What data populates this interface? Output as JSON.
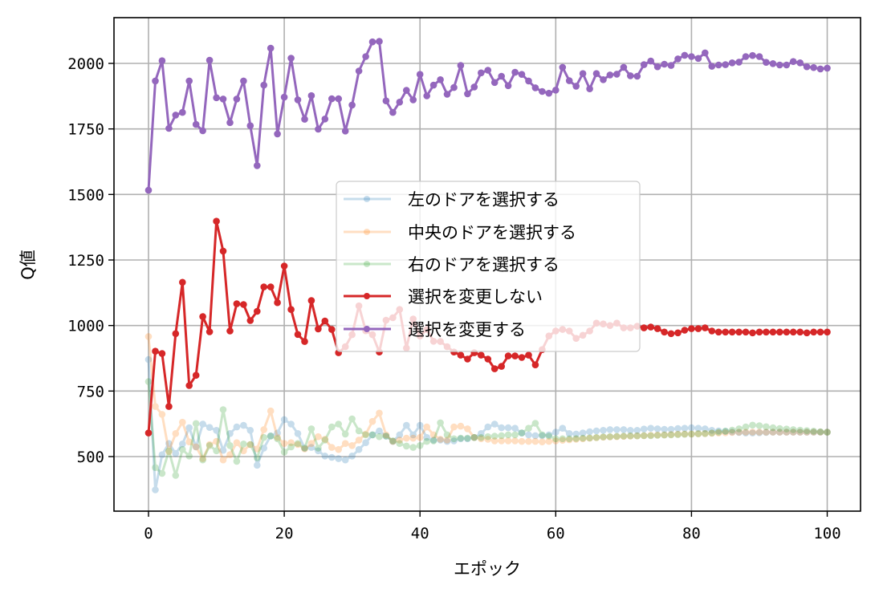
{
  "chart_data": {
    "type": "line",
    "title": "",
    "xlabel": "エポック",
    "ylabel": "Q値",
    "xlim": [
      -5,
      105
    ],
    "ylim": [
      300,
      2180
    ],
    "x_ticks": [
      0,
      20,
      40,
      60,
      80,
      100
    ],
    "y_ticks": [
      500,
      750,
      1000,
      1250,
      1500,
      1750,
      2000
    ],
    "grid": true,
    "legend_position": "center",
    "x": "0..100 (epoch index)",
    "series": [
      {
        "name": "左のドアを選択する",
        "color": "#1f77b4",
        "alpha": 0.25,
        "marker": "o",
        "values": [
          870,
          373,
          507,
          550,
          512,
          548,
          610,
          537,
          624,
          611,
          600,
          524,
          588,
          613,
          619,
          600,
          467,
          532,
          579,
          590,
          641,
          624,
          588,
          532,
          535,
          522,
          502,
          497,
          492,
          487,
          502,
          527,
          553,
          583,
          598,
          578,
          558,
          583,
          619,
          583,
          619,
          573,
          563,
          563,
          558,
          560,
          568,
          568,
          573,
          588,
          613,
          624,
          610,
          610,
          608,
          590,
          583,
          580,
          580,
          583,
          593,
          608,
          588,
          586,
          590,
          595,
          598,
          600,
          603,
          603,
          603,
          600,
          600,
          605,
          608,
          606,
          604,
          604,
          607,
          608,
          610,
          608,
          606,
          600,
          598,
          596,
          594,
          592,
          590,
          590,
          591,
          592,
          593,
          593,
          593,
          593,
          593,
          593,
          593,
          593,
          593
        ]
      },
      {
        "name": "中央のドアを選択する",
        "color": "#ff7f0e",
        "alpha": 0.25,
        "marker": "o",
        "values": [
          958,
          691,
          661,
          519,
          588,
          631,
          556,
          537,
          492,
          546,
          558,
          487,
          507,
          553,
          522,
          546,
          529,
          603,
          674,
          573,
          550,
          553,
          546,
          529,
          550,
          576,
          566,
          535,
          527,
          550,
          542,
          563,
          586,
          634,
          666,
          583,
          558,
          563,
          570,
          570,
          573,
          613,
          583,
          566,
          563,
          613,
          616,
          606,
          573,
          568,
          566,
          560,
          560,
          560,
          560,
          558,
          558,
          558,
          556,
          558,
          560,
          562,
          564,
          566,
          568,
          570,
          572,
          574,
          575,
          576,
          577,
          578,
          579,
          580,
          581,
          582,
          583,
          584,
          585,
          586,
          586,
          587,
          588,
          589,
          590,
          591,
          592,
          593,
          593,
          593,
          593,
          593,
          593,
          593,
          593,
          593,
          593,
          593,
          593,
          593,
          593
        ]
      },
      {
        "name": "右のドアを選択する",
        "color": "#2ca02c",
        "alpha": 0.25,
        "marker": "o",
        "values": [
          786,
          458,
          436,
          522,
          428,
          527,
          502,
          626,
          487,
          542,
          522,
          679,
          542,
          482,
          548,
          546,
          495,
          573,
          578,
          568,
          517,
          537,
          550,
          532,
          606,
          532,
          563,
          613,
          624,
          586,
          644,
          598,
          583,
          583,
          576,
          578,
          560,
          550,
          540,
          535,
          542,
          558,
          560,
          629,
          583,
          568,
          570,
          570,
          573,
          573,
          576,
          578,
          580,
          583,
          583,
          590,
          608,
          627,
          583,
          578,
          568,
          568,
          568,
          569,
          570,
          571,
          573,
          575,
          576,
          577,
          578,
          579,
          579,
          580,
          580,
          581,
          582,
          583,
          584,
          585,
          586,
          587,
          588,
          590,
          593,
          597,
          601,
          606,
          613,
          620,
          618,
          614,
          610,
          607,
          605,
          603,
          601,
          599,
          597,
          595,
          593
        ]
      },
      {
        "name": "選択を変更しない",
        "color": "#d62728",
        "alpha": 1.0,
        "marker": "o",
        "values": [
          590,
          902,
          893,
          691,
          969,
          1165,
          771,
          810,
          1034,
          976,
          1398,
          1284,
          979,
          1083,
          1080,
          1019,
          1054,
          1147,
          1147,
          1087,
          1227,
          1061,
          966,
          939,
          1095,
          987,
          1017,
          985,
          896,
          919,
          965,
          1075,
          980,
          965,
          899,
          1020,
          1030,
          1061,
          914,
          1025,
          960,
          985,
          940,
          939,
          919,
          899,
          887,
          872,
          896,
          887,
          872,
          835,
          844,
          884,
          884,
          878,
          887,
          850,
          908,
          960,
          979,
          985,
          979,
          951,
          963,
          979,
          1009,
          1006,
          1000,
          1009,
          991,
          991,
          997,
          991,
          994,
          988,
          975,
          969,
          972,
          982,
          988,
          988,
          991,
          979,
          975,
          975,
          975,
          975,
          975,
          972,
          975,
          975,
          975,
          975,
          975,
          975,
          975,
          972,
          975,
          975,
          975
        ]
      },
      {
        "name": "選択を変更する",
        "color": "#9467bd",
        "alpha": 1.0,
        "marker": "o",
        "values": [
          1516,
          1933,
          2010,
          1752,
          1803,
          1813,
          1933,
          1767,
          1743,
          2012,
          1869,
          1864,
          1774,
          1864,
          1933,
          1762,
          1610,
          1917,
          2058,
          1731,
          1871,
          2020,
          1861,
          1787,
          1877,
          1749,
          1788,
          1865,
          1865,
          1742,
          1841,
          1971,
          2026,
          2082,
          2084,
          1857,
          1813,
          1852,
          1897,
          1861,
          1958,
          1876,
          1917,
          1938,
          1882,
          1908,
          1992,
          1884,
          1910,
          1964,
          1974,
          1927,
          1951,
          1915,
          1966,
          1958,
          1933,
          1907,
          1893,
          1886,
          1898,
          1985,
          1934,
          1913,
          1961,
          1903,
          1961,
          1938,
          1956,
          1959,
          1985,
          1953,
          1951,
          1995,
          2009,
          1987,
          1997,
          1992,
          2017,
          2031,
          2026,
          2019,
          2040,
          1989,
          1994,
          1995,
          2002,
          2005,
          2026,
          2030,
          2026,
          2004,
          1999,
          1994,
          1994,
          2007,
          2002,
          1987,
          1984,
          1979,
          1982
        ]
      }
    ]
  },
  "axes": {
    "xlabel": "エポック",
    "ylabel": "Q値",
    "x_tick_labels": [
      "0",
      "20",
      "40",
      "60",
      "80",
      "100"
    ],
    "y_tick_labels": [
      "500",
      "750",
      "1000",
      "1250",
      "1500",
      "1750",
      "2000"
    ]
  },
  "legend": {
    "items": [
      {
        "label": "左のドアを選択する",
        "color": "#1f77b4",
        "alpha": 0.25
      },
      {
        "label": "中央のドアを選択する",
        "color": "#ff7f0e",
        "alpha": 0.25
      },
      {
        "label": "右のドアを選択する",
        "color": "#2ca02c",
        "alpha": 0.25
      },
      {
        "label": "選択を変更しない",
        "color": "#d62728",
        "alpha": 1.0
      },
      {
        "label": "選択を変更する",
        "color": "#9467bd",
        "alpha": 1.0
      }
    ]
  }
}
